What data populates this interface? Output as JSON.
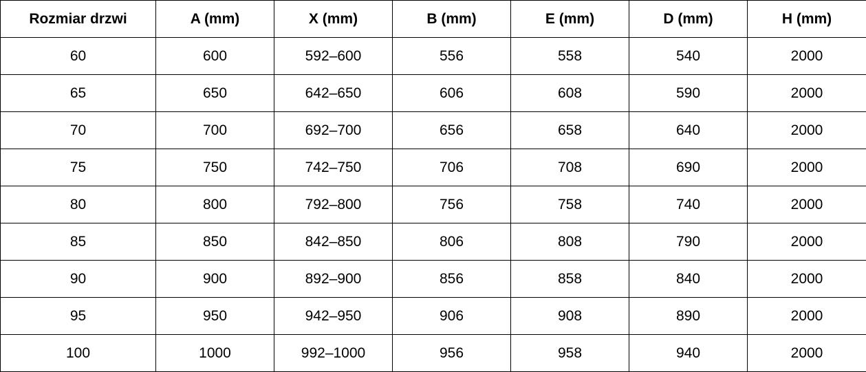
{
  "table": {
    "headers": [
      "Rozmiar drzwi",
      "A (mm)",
      "X (mm)",
      "B (mm)",
      "E (mm)",
      "D (mm)",
      "H (mm)"
    ],
    "rows": [
      [
        "60",
        "600",
        "592–600",
        "556",
        "558",
        "540",
        "2000"
      ],
      [
        "65",
        "650",
        "642–650",
        "606",
        "608",
        "590",
        "2000"
      ],
      [
        "70",
        "700",
        "692–700",
        "656",
        "658",
        "640",
        "2000"
      ],
      [
        "75",
        "750",
        "742–750",
        "706",
        "708",
        "690",
        "2000"
      ],
      [
        "80",
        "800",
        "792–800",
        "756",
        "758",
        "740",
        "2000"
      ],
      [
        "85",
        "850",
        "842–850",
        "806",
        "808",
        "790",
        "2000"
      ],
      [
        "90",
        "900",
        "892–900",
        "856",
        "858",
        "840",
        "2000"
      ],
      [
        "95",
        "950",
        "942–950",
        "906",
        "908",
        "890",
        "2000"
      ],
      [
        "100",
        "1000",
        "992–1000",
        "956",
        "958",
        "940",
        "2000"
      ]
    ]
  }
}
